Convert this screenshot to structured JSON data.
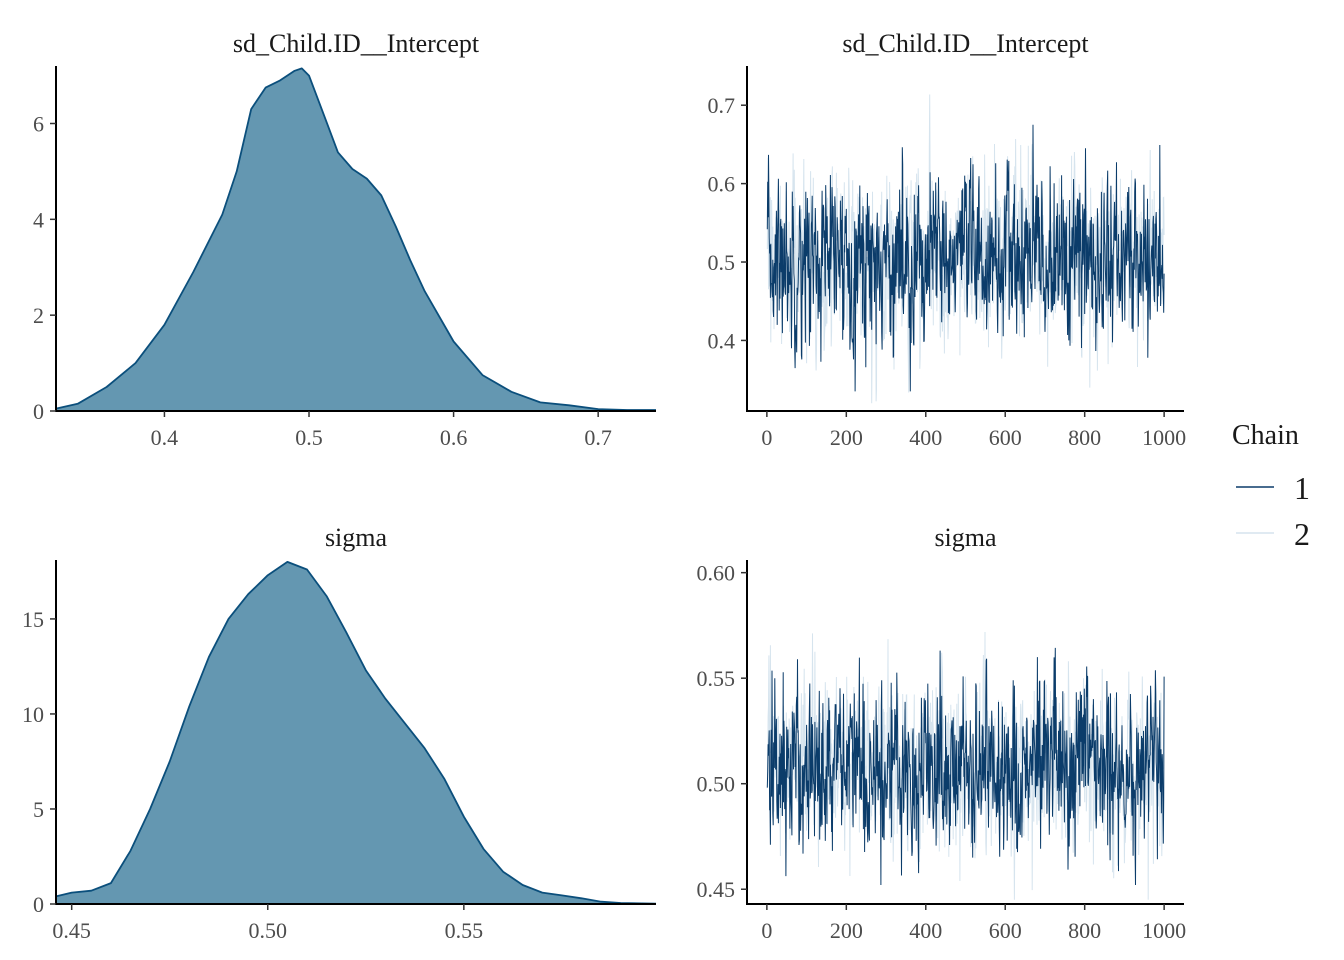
{
  "legend": {
    "title": "Chain",
    "entries": [
      {
        "label": "1",
        "color": "#0b3c6a"
      },
      {
        "label": "2",
        "color": "#d6e4ee"
      }
    ]
  },
  "chart_data": [
    {
      "type": "area",
      "title": "sd_Child.ID__Intercept",
      "xlim": [
        0.325,
        0.74
      ],
      "ylim": [
        0,
        7.2
      ],
      "xticks": [
        0.4,
        0.5,
        0.6,
        0.7
      ],
      "xtick_labels": [
        "0.4",
        "0.5",
        "0.6",
        "0.7"
      ],
      "yticks": [
        0,
        2,
        4,
        6
      ],
      "ytick_labels": [
        "0",
        "2",
        "4",
        "6"
      ],
      "fill": "#6497b1",
      "stroke": "#0b4f7c",
      "x": [
        0.325,
        0.34,
        0.36,
        0.38,
        0.4,
        0.42,
        0.44,
        0.45,
        0.46,
        0.47,
        0.48,
        0.49,
        0.495,
        0.5,
        0.51,
        0.52,
        0.53,
        0.54,
        0.55,
        0.56,
        0.57,
        0.58,
        0.6,
        0.62,
        0.64,
        0.66,
        0.68,
        0.7,
        0.72,
        0.74
      ],
      "y": [
        0.05,
        0.15,
        0.5,
        1.0,
        1.8,
        2.9,
        4.1,
        5.0,
        6.3,
        6.75,
        6.9,
        7.1,
        7.15,
        7.0,
        6.2,
        5.4,
        5.05,
        4.85,
        4.5,
        3.85,
        3.15,
        2.5,
        1.45,
        0.75,
        0.4,
        0.18,
        0.12,
        0.04,
        0.02,
        0.02
      ]
    },
    {
      "type": "line",
      "title": "sd_Child.ID__Intercept",
      "xlim": [
        -50,
        1050
      ],
      "ylim": [
        0.31,
        0.75
      ],
      "xticks": [
        0,
        200,
        400,
        600,
        800,
        1000
      ],
      "xtick_labels": [
        "0",
        "200",
        "400",
        "600",
        "800",
        "1000"
      ],
      "yticks": [
        0.4,
        0.5,
        0.6,
        0.7
      ],
      "ytick_labels": [
        "0.4",
        "0.5",
        "0.6",
        "0.7"
      ],
      "series": [
        {
          "name": "1",
          "color": "#0b3c6a",
          "mean": 0.503,
          "sd": 0.054,
          "min": 0.335,
          "max": 0.675,
          "iterations": 1000
        },
        {
          "name": "2",
          "color": "#d6e4ee",
          "mean": 0.5,
          "sd": 0.058,
          "min": 0.32,
          "max": 0.745,
          "iterations": 1000
        }
      ]
    },
    {
      "type": "area",
      "title": "sigma",
      "xlim": [
        0.446,
        0.599
      ],
      "ylim": [
        0,
        18.1
      ],
      "xticks": [
        0.45,
        0.5,
        0.55
      ],
      "xtick_labels": [
        "0.45",
        "0.50",
        "0.55"
      ],
      "yticks": [
        0,
        5,
        10,
        15
      ],
      "ytick_labels": [
        "0",
        "5",
        "10",
        "15"
      ],
      "fill": "#6497b1",
      "stroke": "#0b4f7c",
      "x": [
        0.446,
        0.45,
        0.455,
        0.46,
        0.465,
        0.47,
        0.475,
        0.48,
        0.485,
        0.49,
        0.495,
        0.5,
        0.505,
        0.51,
        0.515,
        0.52,
        0.525,
        0.53,
        0.535,
        0.54,
        0.545,
        0.55,
        0.555,
        0.56,
        0.565,
        0.57,
        0.575,
        0.58,
        0.585,
        0.59,
        0.599
      ],
      "y": [
        0.4,
        0.6,
        0.7,
        1.1,
        2.8,
        5.0,
        7.5,
        10.4,
        13.0,
        15.0,
        16.3,
        17.3,
        18.0,
        17.6,
        16.2,
        14.3,
        12.3,
        10.8,
        9.5,
        8.2,
        6.6,
        4.6,
        2.9,
        1.7,
        1.0,
        0.6,
        0.45,
        0.3,
        0.12,
        0.05,
        0.02
      ]
    },
    {
      "type": "line",
      "title": "sigma",
      "xlim": [
        -50,
        1050
      ],
      "ylim": [
        0.443,
        0.606
      ],
      "xticks": [
        0,
        200,
        400,
        600,
        800,
        1000
      ],
      "xtick_labels": [
        "0",
        "200",
        "400",
        "600",
        "800",
        "1000"
      ],
      "yticks": [
        0.45,
        0.5,
        0.55,
        0.6
      ],
      "ytick_labels": [
        "0.45",
        "0.50",
        "0.55",
        "0.60"
      ],
      "series": [
        {
          "name": "1",
          "color": "#0b3c6a",
          "mean": 0.508,
          "sd": 0.021,
          "min": 0.452,
          "max": 0.58,
          "iterations": 1000
        },
        {
          "name": "2",
          "color": "#d6e4ee",
          "mean": 0.508,
          "sd": 0.021,
          "min": 0.445,
          "max": 0.598,
          "iterations": 1000
        }
      ]
    }
  ]
}
